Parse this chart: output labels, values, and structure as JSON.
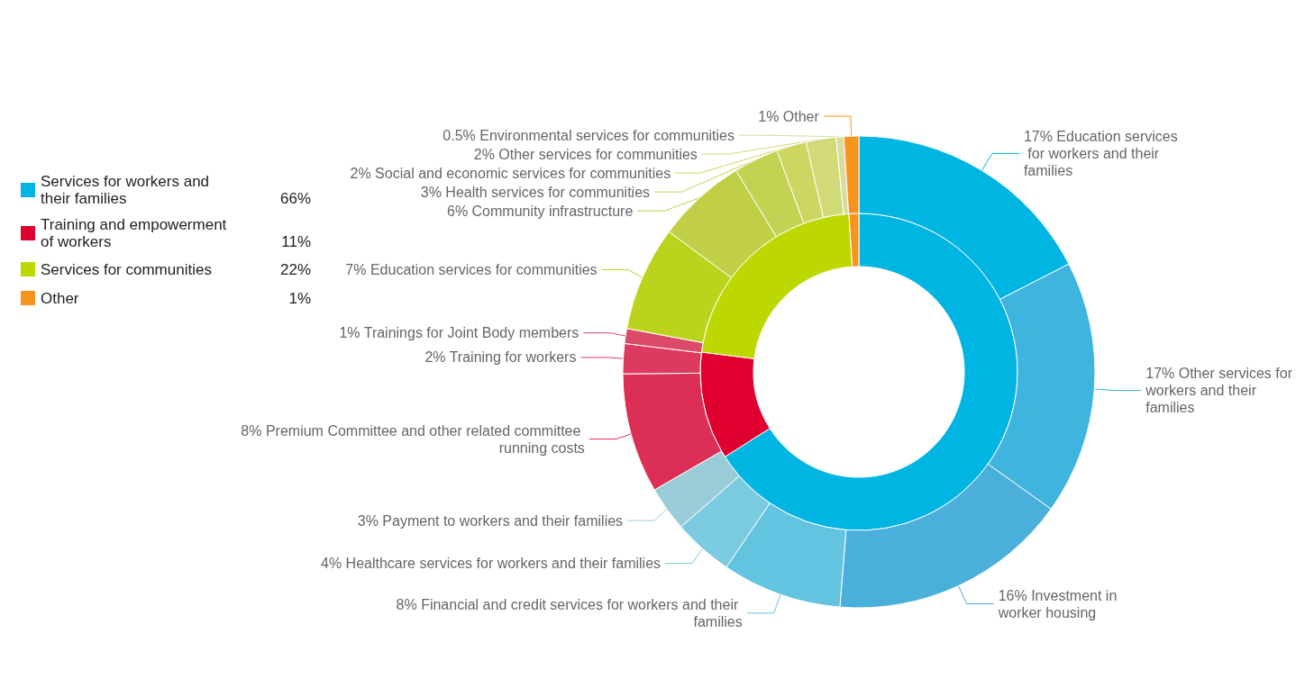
{
  "chart_data": [
    {
      "type": "donut",
      "legend": "left",
      "categories": [
        "Services for workers and their families",
        "Training and empowerment of workers",
        "Services for communities",
        "Other"
      ],
      "values": [
        66,
        11,
        22,
        1
      ],
      "colors": [
        "#00b5e2",
        "#e0002f",
        "#bcd800",
        "#f7941d"
      ],
      "value_labels": [
        "66%",
        "11%",
        "22%",
        "1%"
      ]
    },
    {
      "type": "donut",
      "categories": [
        "Education services for workers and their families",
        "Other services for workers and their families",
        "Investment in worker housing",
        "Financial and credit services for workers and their families",
        "Healthcare services for workers and their families",
        "Payment to workers and their families",
        "Premium Committee and other related committee running costs",
        "Training for workers",
        "Trainings for Joint Body members",
        "Education services for communities",
        "Community infrastructure",
        "Health services for communities",
        "Social and economic services for communities",
        "Other services for communities",
        "Environmental services for communities",
        "Other"
      ],
      "values": [
        17,
        17,
        16,
        8,
        4,
        3,
        8,
        2,
        1,
        7,
        6,
        3,
        2,
        2,
        0.5,
        1
      ],
      "colors": [
        "#00b5e2",
        "#3fb4de",
        "#4aafda",
        "#62c4de",
        "#7acbe0",
        "#9acbd8",
        "#dc2f55",
        "#dc3b5f",
        "#dc4a6a",
        "#bcd31d",
        "#c0cf45",
        "#c4d254",
        "#ccd660",
        "#d2da78",
        "#d8dd9e",
        "#f7941d"
      ],
      "value_labels": [
        "17%",
        "17%",
        "16%",
        "8%",
        "4%",
        "3%",
        "8%",
        "2%",
        "1%",
        "7%",
        "6%",
        "3%",
        "2%",
        "2%",
        "0.5%",
        "1%"
      ]
    }
  ]
}
